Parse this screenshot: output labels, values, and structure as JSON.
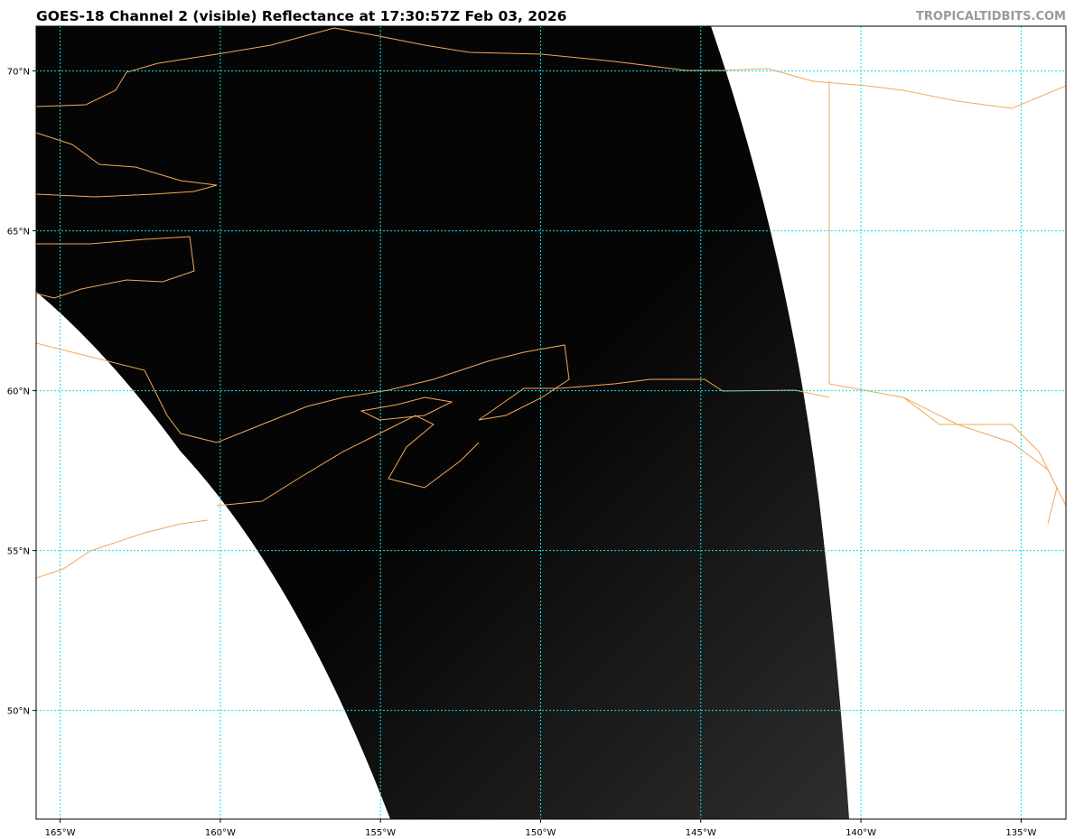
{
  "title": "GOES-18 Channel 2 (visible) Reflectance at 17:30:57Z Feb 03, 2026",
  "credit": "TROPICALTIDBITS.COM",
  "map": {
    "lon_range": [
      -165.75,
      -133.6
    ],
    "lat_range": [
      46.6,
      71.4
    ],
    "lon_ticks": [
      -165,
      -160,
      -155,
      -150,
      -145,
      -140,
      -135
    ],
    "lon_labels": [
      "165°W",
      "160°W",
      "155°W",
      "150°W",
      "145°W",
      "140°W",
      "135°W"
    ],
    "lat_ticks": [
      70,
      65,
      60,
      55,
      50
    ],
    "lat_labels": [
      "70°N",
      "65°N",
      "60°N",
      "55°N",
      "50°N"
    ],
    "colors": {
      "gridlines": "#00e5e5",
      "coastline": "#f2a85a",
      "no_data": "#ffffff",
      "imagery_dark": "#050505"
    }
  }
}
